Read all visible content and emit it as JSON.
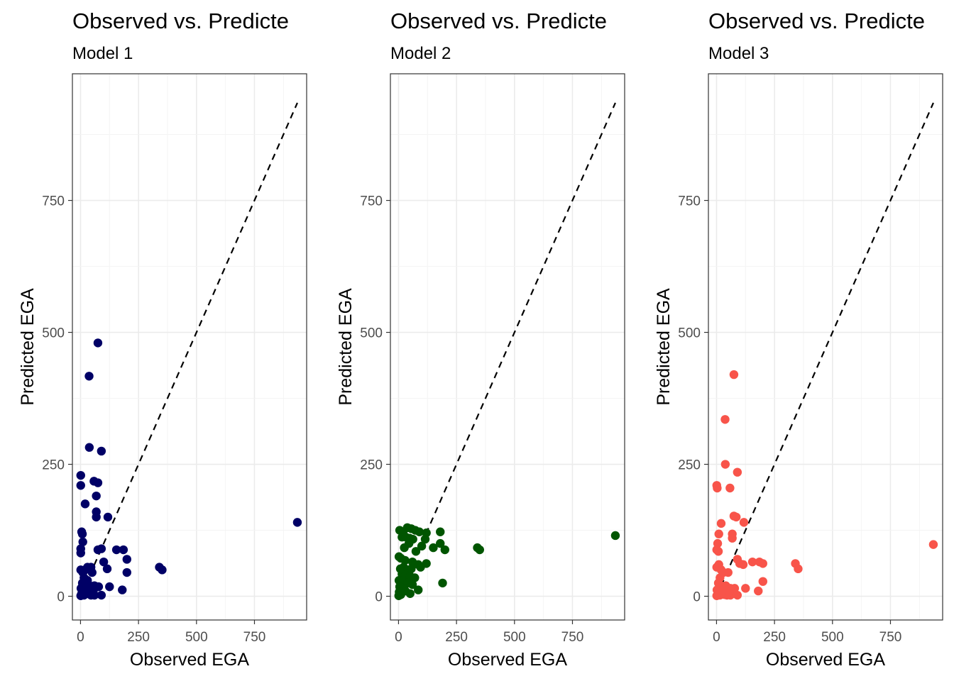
{
  "chart_data": [
    {
      "type": "scatter",
      "title": "Observed vs. Predicte",
      "subtitle": "Model 1",
      "xlabel": "Observed EGA",
      "ylabel": "Predicted EGA",
      "xlim": [
        -35,
        975
      ],
      "ylim": [
        -45,
        990
      ],
      "xticks": [
        0,
        250,
        500,
        750
      ],
      "yticks": [
        0,
        250,
        500,
        750
      ],
      "grid": true,
      "reference_line": {
        "style": "dashed",
        "from": [
          0,
          0
        ],
        "to": [
          935,
          935
        ]
      },
      "point_color": "#000066",
      "points": [
        [
          75,
          480
        ],
        [
          37,
          417
        ],
        [
          38,
          282
        ],
        [
          90,
          275
        ],
        [
          1,
          229
        ],
        [
          1,
          210
        ],
        [
          58,
          218
        ],
        [
          75,
          215
        ],
        [
          68,
          190
        ],
        [
          20,
          175
        ],
        [
          68,
          160
        ],
        [
          68,
          150
        ],
        [
          118,
          150
        ],
        [
          5,
          122
        ],
        [
          8,
          118
        ],
        [
          10,
          103
        ],
        [
          1,
          90
        ],
        [
          1,
          82
        ],
        [
          75,
          88
        ],
        [
          90,
          90
        ],
        [
          155,
          88
        ],
        [
          185,
          88
        ],
        [
          200,
          70
        ],
        [
          100,
          65
        ],
        [
          115,
          52
        ],
        [
          200,
          45
        ],
        [
          340,
          55
        ],
        [
          352,
          50
        ],
        [
          935,
          140
        ],
        [
          1,
          50
        ],
        [
          10,
          45
        ],
        [
          20,
          50
        ],
        [
          30,
          55
        ],
        [
          45,
          55
        ],
        [
          50,
          45
        ],
        [
          15,
          35
        ],
        [
          30,
          30
        ],
        [
          8,
          25
        ],
        [
          20,
          22
        ],
        [
          40,
          20
        ],
        [
          60,
          20
        ],
        [
          78,
          18
        ],
        [
          125,
          18
        ],
        [
          180,
          12
        ],
        [
          2,
          15
        ],
        [
          12,
          10
        ],
        [
          25,
          8
        ],
        [
          35,
          5
        ],
        [
          5,
          5
        ],
        [
          15,
          2
        ],
        [
          45,
          2
        ],
        [
          60,
          2
        ],
        [
          90,
          2
        ],
        [
          1,
          1
        ],
        [
          55,
          10
        ],
        [
          28,
          15
        ]
      ]
    },
    {
      "type": "scatter",
      "title": "Observed vs. Predicte",
      "subtitle": "Model 2",
      "xlabel": "Observed EGA",
      "ylabel": "Predicted EGA",
      "xlim": [
        -35,
        975
      ],
      "ylim": [
        -45,
        990
      ],
      "xticks": [
        0,
        250,
        500,
        750
      ],
      "yticks": [
        0,
        250,
        500,
        750
      ],
      "grid": true,
      "reference_line": {
        "style": "dashed",
        "from": [
          0,
          0
        ],
        "to": [
          935,
          935
        ]
      },
      "point_color": "#005500",
      "points": [
        [
          38,
          130
        ],
        [
          5,
          125
        ],
        [
          20,
          122
        ],
        [
          55,
          128
        ],
        [
          72,
          125
        ],
        [
          90,
          122
        ],
        [
          120,
          120
        ],
        [
          180,
          122
        ],
        [
          15,
          112
        ],
        [
          32,
          112
        ],
        [
          48,
          110
        ],
        [
          62,
          108
        ],
        [
          115,
          108
        ],
        [
          180,
          100
        ],
        [
          45,
          100
        ],
        [
          200,
          88
        ],
        [
          25,
          92
        ],
        [
          100,
          95
        ],
        [
          150,
          92
        ],
        [
          75,
          85
        ],
        [
          340,
          92
        ],
        [
          350,
          88
        ],
        [
          935,
          115
        ],
        [
          2,
          75
        ],
        [
          10,
          72
        ],
        [
          28,
          68
        ],
        [
          60,
          65
        ],
        [
          85,
          60
        ],
        [
          120,
          62
        ],
        [
          8,
          52
        ],
        [
          22,
          55
        ],
        [
          40,
          50
        ],
        [
          55,
          52
        ],
        [
          95,
          55
        ],
        [
          15,
          42
        ],
        [
          30,
          40
        ],
        [
          50,
          38
        ],
        [
          70,
          35
        ],
        [
          2,
          30
        ],
        [
          18,
          28
        ],
        [
          40,
          25
        ],
        [
          60,
          22
        ],
        [
          190,
          25
        ],
        [
          5,
          18
        ],
        [
          22,
          15
        ],
        [
          85,
          12
        ],
        [
          50,
          5
        ],
        [
          3,
          8
        ],
        [
          10,
          3
        ],
        [
          1,
          1
        ],
        [
          30,
          10
        ]
      ]
    },
    {
      "type": "scatter",
      "title": "Observed vs. Predicte",
      "subtitle": "Model 3",
      "xlabel": "Observed EGA",
      "ylabel": "Predicted EGA",
      "xlim": [
        -35,
        975
      ],
      "ylim": [
        -45,
        990
      ],
      "xticks": [
        0,
        250,
        500,
        750
      ],
      "yticks": [
        0,
        250,
        500,
        750
      ],
      "grid": true,
      "reference_line": {
        "style": "dashed",
        "from": [
          0,
          0
        ],
        "to": [
          935,
          935
        ]
      },
      "point_color": "#F8544A",
      "points": [
        [
          75,
          420
        ],
        [
          37,
          335
        ],
        [
          38,
          250
        ],
        [
          90,
          235
        ],
        [
          1,
          210
        ],
        [
          3,
          205
        ],
        [
          58,
          205
        ],
        [
          75,
          152
        ],
        [
          85,
          150
        ],
        [
          20,
          138
        ],
        [
          118,
          140
        ],
        [
          68,
          118
        ],
        [
          68,
          110
        ],
        [
          10,
          118
        ],
        [
          5,
          100
        ],
        [
          1,
          88
        ],
        [
          8,
          85
        ],
        [
          90,
          70
        ],
        [
          100,
          62
        ],
        [
          115,
          60
        ],
        [
          155,
          65
        ],
        [
          185,
          65
        ],
        [
          200,
          62
        ],
        [
          340,
          62
        ],
        [
          352,
          52
        ],
        [
          935,
          98
        ],
        [
          1,
          55
        ],
        [
          10,
          60
        ],
        [
          20,
          50
        ],
        [
          30,
          45
        ],
        [
          50,
          45
        ],
        [
          15,
          35
        ],
        [
          8,
          25
        ],
        [
          20,
          20
        ],
        [
          40,
          20
        ],
        [
          60,
          15
        ],
        [
          78,
          15
        ],
        [
          125,
          15
        ],
        [
          180,
          10
        ],
        [
          200,
          28
        ],
        [
          2,
          12
        ],
        [
          12,
          8
        ],
        [
          25,
          5
        ],
        [
          35,
          3
        ],
        [
          5,
          3
        ],
        [
          15,
          2
        ],
        [
          45,
          2
        ],
        [
          60,
          2
        ],
        [
          90,
          2
        ],
        [
          1,
          1
        ],
        [
          55,
          8
        ],
        [
          28,
          12
        ]
      ]
    }
  ]
}
